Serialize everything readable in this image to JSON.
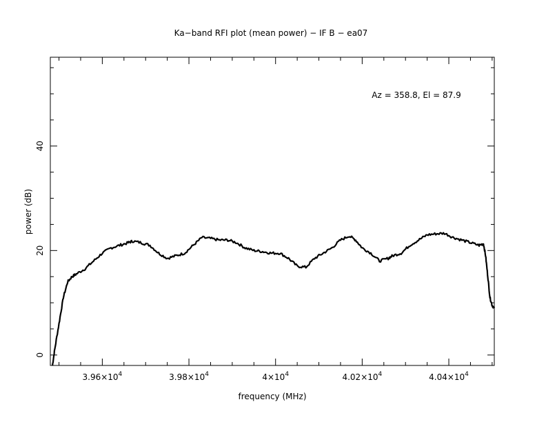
{
  "chart_data": {
    "type": "line",
    "title": "Ka−band RFI plot (mean power) − IF B − ea07",
    "annotation": "Az = 358.8, El = 87.9",
    "xlabel": "frequency (MHz)",
    "ylabel": "power (dB)",
    "xlim": [
      39480,
      40505
    ],
    "ylim": [
      -2,
      57
    ],
    "grid": false,
    "x_ticks": [
      {
        "value": 39600,
        "mantissa": "3.96×10",
        "exp": "4"
      },
      {
        "value": 39800,
        "mantissa": "3.98×10",
        "exp": "4"
      },
      {
        "value": 40000,
        "mantissa": "4×10",
        "exp": "4"
      },
      {
        "value": 40200,
        "mantissa": "4.02×10",
        "exp": "4"
      },
      {
        "value": 40400,
        "mantissa": "4.04×10",
        "exp": "4"
      }
    ],
    "y_ticks": [
      {
        "value": 0,
        "label": "0"
      },
      {
        "value": 20,
        "label": "20"
      },
      {
        "value": 40,
        "label": "40"
      }
    ],
    "series": [
      {
        "x": [
          39485,
          39490,
          39500,
          39510,
          39520,
          39530,
          39540,
          39560,
          39580,
          39600,
          39620,
          39640,
          39660,
          39670,
          39690,
          39710,
          39730,
          39750,
          39770,
          39790,
          39810,
          39830,
          39850,
          39870,
          39890,
          39910,
          39930,
          39950,
          39970,
          39990,
          40010,
          40030,
          40050,
          40070,
          40090,
          40110,
          40130,
          40150,
          40170,
          40185,
          40200,
          40220,
          40240,
          40260,
          40270,
          40290,
          40310,
          40330,
          40350,
          40370,
          40390,
          40410,
          40430,
          40450,
          40470,
          40480,
          40485,
          40490,
          40495,
          40500,
          40505
        ],
        "y": [
          -2,
          1,
          6,
          11,
          14,
          15,
          15.5,
          16.5,
          18,
          19.5,
          20.5,
          21,
          21.5,
          21.8,
          21.5,
          21,
          19.5,
          18.5,
          19,
          19.5,
          21,
          22.5,
          22.3,
          22,
          22,
          21.5,
          20.5,
          20,
          19.8,
          19.5,
          19.5,
          18.5,
          17,
          16.8,
          18.5,
          19.5,
          20.5,
          22,
          22.8,
          22,
          20.5,
          19.5,
          18,
          18.5,
          19,
          19.5,
          21,
          22,
          23,
          23.2,
          23.3,
          22.5,
          22,
          21.5,
          21,
          21.3,
          19,
          15,
          11,
          9.5,
          9
        ]
      }
    ]
  }
}
